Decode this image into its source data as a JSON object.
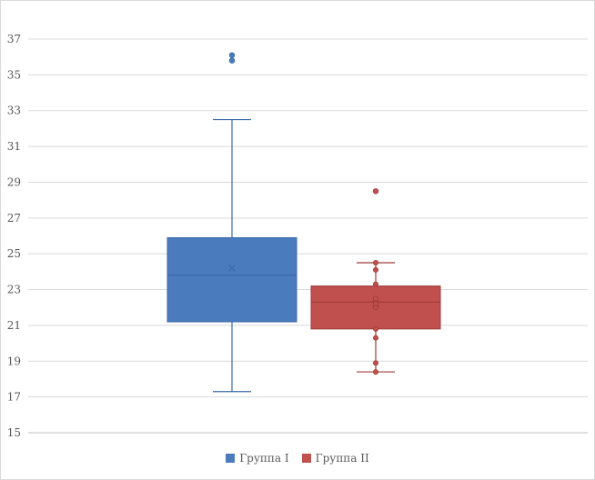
{
  "chart_data": {
    "type": "box",
    "title": "",
    "xlabel": "",
    "ylabel": "",
    "ylim": [
      15,
      37
    ],
    "y_ticks": [
      15,
      17,
      19,
      21,
      23,
      25,
      27,
      29,
      31,
      33,
      35,
      37
    ],
    "grid": true,
    "legend_position": "bottom",
    "series": [
      {
        "name": "Группа I",
        "color": "#4a7bbd",
        "stroke": "#3a6aa8",
        "whisker_low": 17.3,
        "q1": 21.2,
        "median": 23.8,
        "q3": 25.9,
        "whisker_high": 32.5,
        "mean": 24.2,
        "points": [],
        "outliers": [
          35.8,
          36.1
        ]
      },
      {
        "name": "Группа II",
        "color": "#c0504d",
        "stroke": "#9e3b38",
        "whisker_low": 18.4,
        "q1": 20.8,
        "median": 22.3,
        "q3": 23.2,
        "whisker_high": 24.5,
        "mean": 22.2,
        "points": [
          18.4,
          18.9,
          20.3,
          20.8,
          22.0,
          22.2,
          22.5,
          23.3,
          24.1,
          24.5
        ],
        "outliers": [
          28.5
        ]
      }
    ]
  }
}
